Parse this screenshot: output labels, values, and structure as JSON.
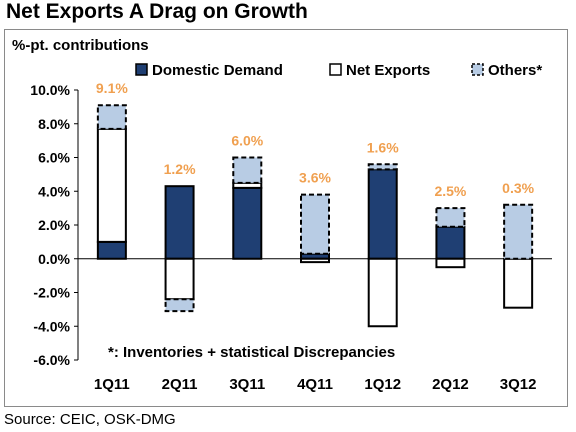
{
  "title": "Net Exports A Drag on Growth",
  "source": "Source: CEIC, OSK-DMG",
  "chart_data": {
    "type": "bar",
    "stacked": true,
    "title": "Net Exports A Drag on Growth",
    "ylabel": "%-pt. contributions",
    "ylim": [
      -6,
      10
    ],
    "yticks": [
      "-6.0%",
      "-4.0%",
      "-2.0%",
      "0.0%",
      "2.0%",
      "4.0%",
      "6.0%",
      "8.0%",
      "10.0%"
    ],
    "ytick_values": [
      -6,
      -4,
      -2,
      0,
      2,
      4,
      6,
      8,
      10
    ],
    "categories": [
      "1Q11",
      "2Q11",
      "3Q11",
      "4Q11",
      "1Q12",
      "2Q12",
      "3Q12"
    ],
    "series": [
      {
        "name": "Domestic Demand",
        "color": "#1f3f73",
        "values": [
          1.0,
          4.3,
          4.2,
          0.3,
          5.3,
          1.9,
          0.0
        ]
      },
      {
        "name": "Net Exports",
        "color": "#ffffff",
        "values": [
          6.7,
          -2.4,
          0.3,
          -0.2,
          -4.0,
          -0.5,
          -2.9
        ]
      },
      {
        "name": "Others*",
        "color": "#b8cce4",
        "values": [
          1.4,
          -0.7,
          1.5,
          3.5,
          0.3,
          1.1,
          3.2
        ]
      }
    ],
    "totals": [
      "9.1%",
      "1.2%",
      "6.0%",
      "3.6%",
      "1.6%",
      "2.5%",
      "0.3%"
    ],
    "totals_color": "#f0a050",
    "legend_position": "top",
    "grid": false,
    "footnote": "*:  Inventories + statistical Discrepancies"
  }
}
